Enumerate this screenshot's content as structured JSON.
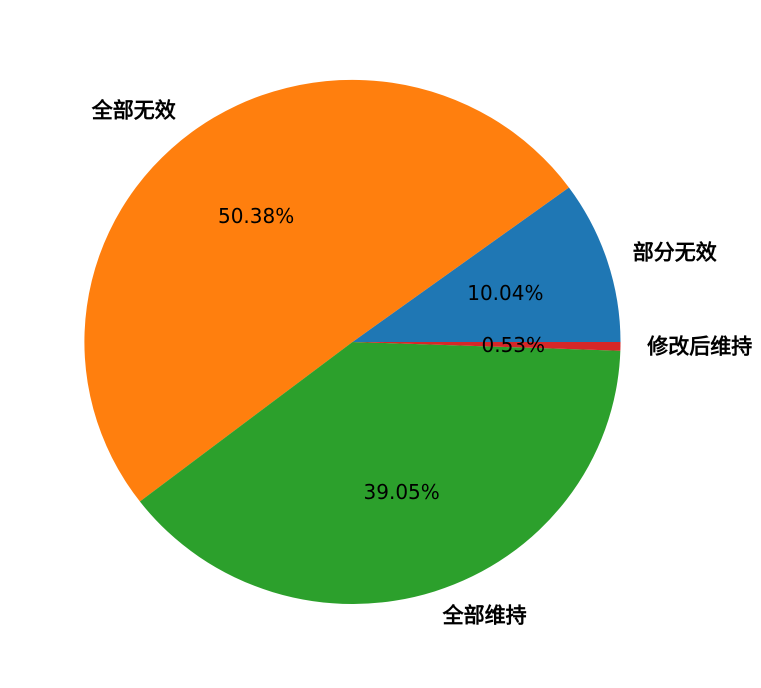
{
  "chart_data": {
    "type": "pie",
    "title": "",
    "background": "#ffffff",
    "start_angle": 0,
    "direction": "counterclockwise",
    "label_distance": 1.1,
    "pct_distance": 0.6,
    "text_color": "#000000",
    "slices": [
      {
        "label": "部分无效",
        "value": 10.04,
        "pct_label": "10.04%",
        "color": "#1f77b4"
      },
      {
        "label": "全部无效",
        "value": 50.38,
        "pct_label": "50.38%",
        "color": "#ff7f0e"
      },
      {
        "label": "全部维持",
        "value": 39.05,
        "pct_label": "39.05%",
        "color": "#2ca02c"
      },
      {
        "label": "修改后维持",
        "value": 0.53,
        "pct_label": "0.53%",
        "color": "#d62728"
      }
    ]
  }
}
